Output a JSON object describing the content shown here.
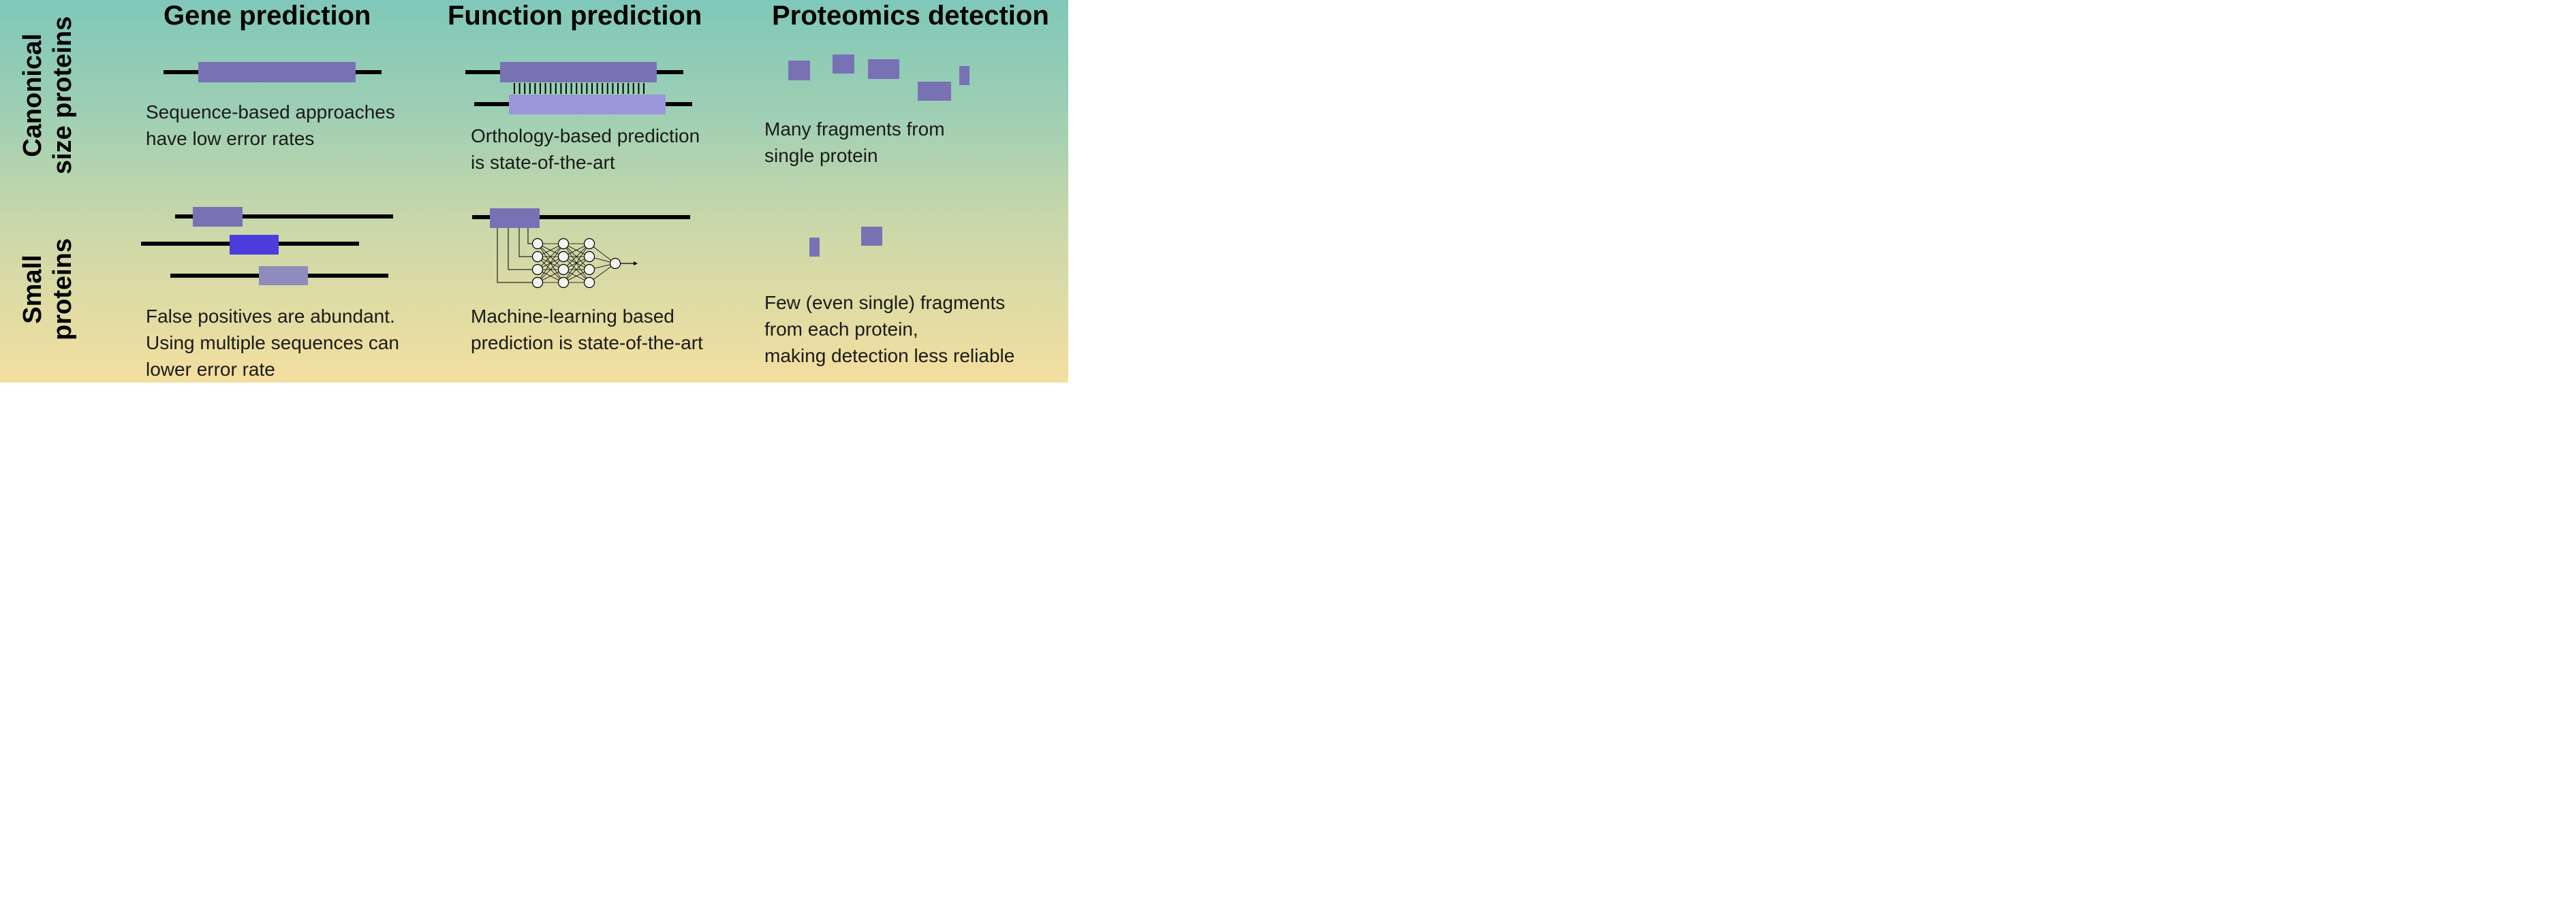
{
  "columns": {
    "gene": "Gene prediction",
    "function": "Function prediction",
    "proteomics": "Proteomics detection"
  },
  "rows": {
    "canonical": [
      "Canonical",
      "size proteins"
    ],
    "small": [
      "Small",
      "proteins"
    ]
  },
  "captions": {
    "canonical_gene": [
      "Sequence-based approaches",
      "have low error rates"
    ],
    "canonical_function": [
      "Orthology-based prediction",
      "is state-of-the-art"
    ],
    "canonical_proteomics": [
      "Many fragments from",
      "single protein"
    ],
    "small_gene": [
      "False positives are abundant.",
      "Using multiple sequences can",
      "lower error rate"
    ],
    "small_function": [
      "Machine-learning based",
      "prediction is state-of-the-art"
    ],
    "small_proteomics": [
      "Few (even single) fragments",
      "from each protein,",
      "making detection less reliable"
    ]
  },
  "colors": {
    "protein_block": "#7872b4",
    "ortholog_block": "#9b95dc",
    "highlight_block": "#4a3ddb",
    "faded_block": "#8f8bbd",
    "line": "#000000"
  }
}
